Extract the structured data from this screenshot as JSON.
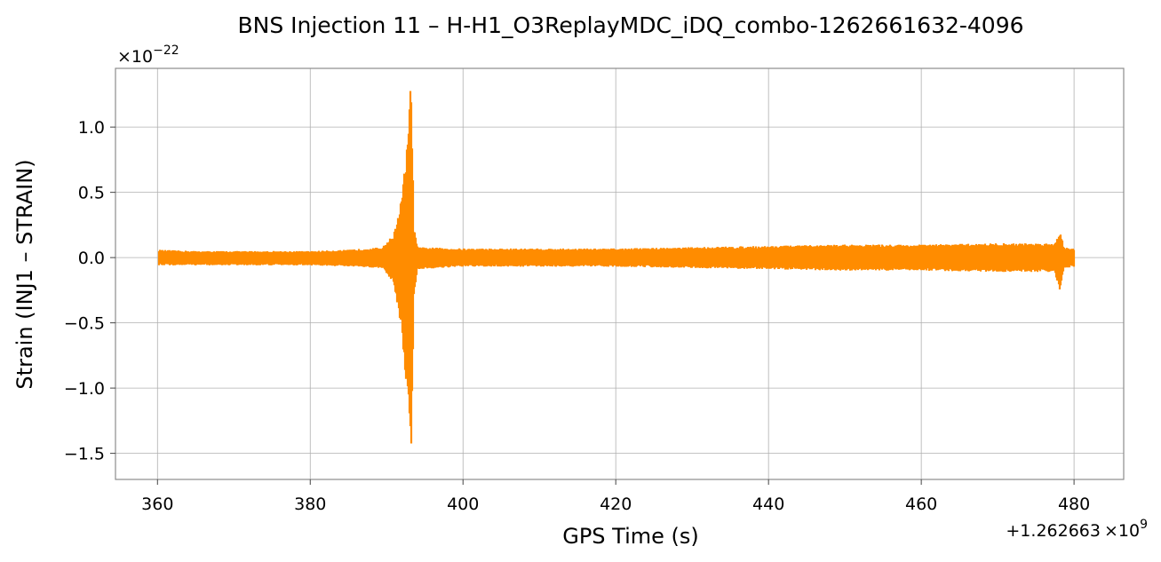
{
  "chart_data": {
    "type": "line",
    "title": "BNS Injection 11 – H-H1_O3ReplayMDC_iDQ_combo-1262661632-4096",
    "xlabel": "GPS Time (s)",
    "ylabel": "Strain (INJ1 – STRAIN)",
    "x_offset_label": "+1.262663",
    "x_offset_exp_base": "×10",
    "x_offset_exp": "9",
    "y_scale_base": "×10",
    "y_scale_exp": "−22",
    "xlim": [
      354.5,
      486.5
    ],
    "ylim": [
      -1.7,
      1.45
    ],
    "x_ticks": [
      360,
      380,
      400,
      420,
      440,
      460,
      480
    ],
    "x_tick_labels": [
      "360",
      "380",
      "400",
      "420",
      "440",
      "460",
      "480"
    ],
    "y_ticks": [
      1.0,
      0.5,
      0.0,
      -0.5,
      -1.0,
      -1.5
    ],
    "y_tick_labels": [
      "1.0",
      "0.5",
      "0.0",
      "−0.5",
      "−1.0",
      "−1.5"
    ],
    "grid": true,
    "line_color": "#ff8c00",
    "series": [
      {
        "x": [
          360.2,
          365,
          370,
          375,
          380,
          385,
          389.5,
          391.0,
          392.0,
          392.8,
          393.2,
          393.5,
          394.0,
          400,
          410,
          420,
          430,
          440,
          450,
          460,
          470,
          477.5,
          478.2,
          478.6,
          480.0
        ],
        "max": [
          0.06,
          0.05,
          0.05,
          0.05,
          0.05,
          0.06,
          0.08,
          0.18,
          0.45,
          0.9,
          1.33,
          0.25,
          0.08,
          0.07,
          0.07,
          0.07,
          0.08,
          0.09,
          0.1,
          0.1,
          0.11,
          0.11,
          0.2,
          0.08,
          0.07
        ],
        "min": [
          -0.06,
          -0.06,
          -0.06,
          -0.06,
          -0.06,
          -0.07,
          -0.08,
          -0.2,
          -0.55,
          -1.1,
          -1.56,
          -0.3,
          -0.09,
          -0.07,
          -0.07,
          -0.07,
          -0.08,
          -0.09,
          -0.1,
          -0.1,
          -0.11,
          -0.11,
          -0.26,
          -0.08,
          -0.07
        ]
      }
    ]
  }
}
